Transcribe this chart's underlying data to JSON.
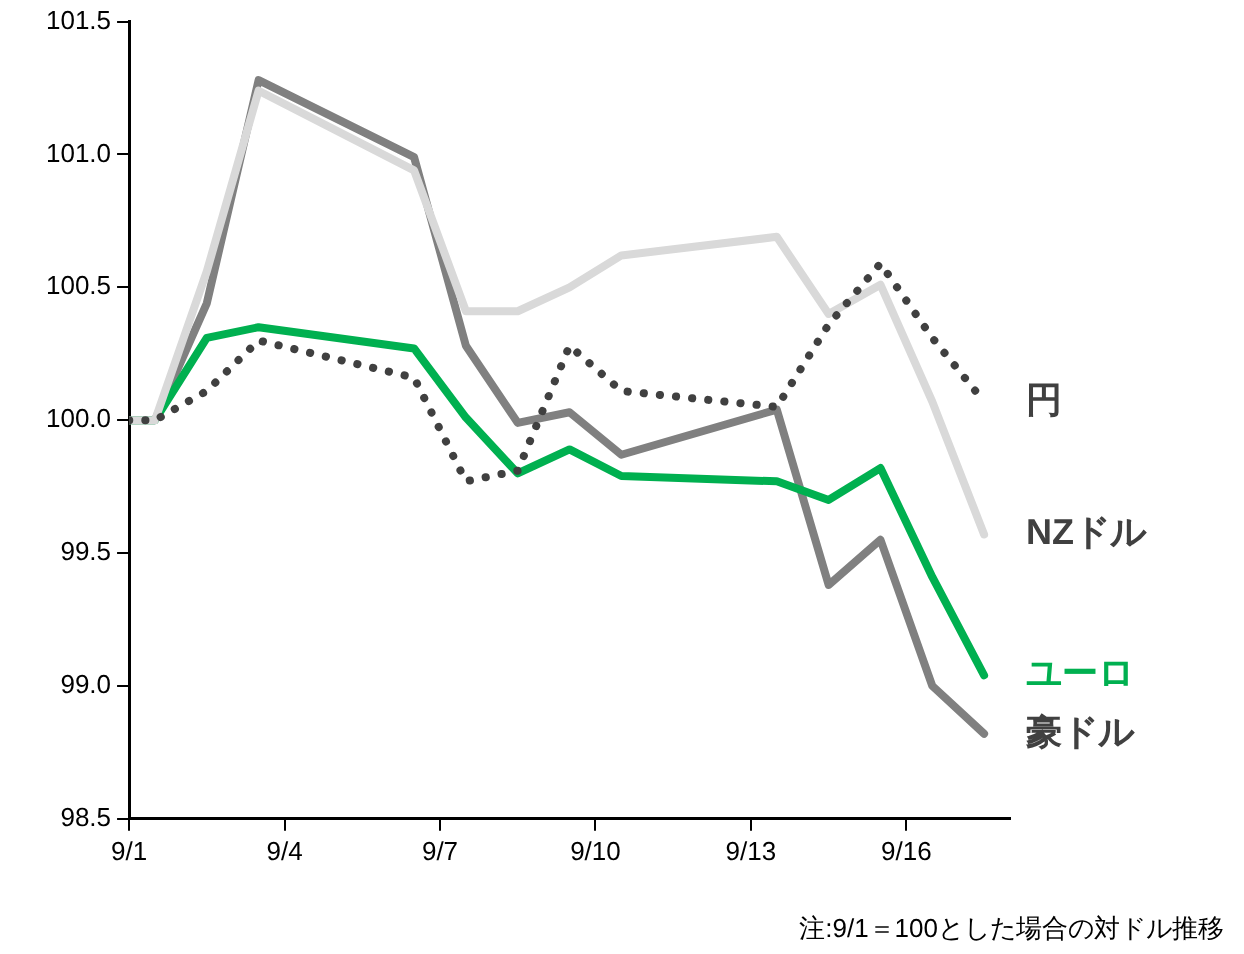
{
  "chart_data": {
    "type": "line",
    "x": [
      "--09-01T00:00",
      "--09-01T12:00",
      "--09-02T12:00",
      "--09-03T12:00",
      "--09-06T12:00",
      "--09-07T12:00",
      "--09-08T12:00",
      "--09-09T12:00",
      "--09-10T12:00",
      "--09-13T12:00",
      "--09-14T12:00",
      "--09-15T12:00",
      "--09-16T12:00",
      "--09-17T12:00"
    ],
    "xlim": [
      "--09-01",
      "--09-18"
    ],
    "xticks": [
      {
        "value": "--09-01",
        "label": "9/1"
      },
      {
        "value": "--09-04",
        "label": "9/4"
      },
      {
        "value": "--09-07",
        "label": "9/7"
      },
      {
        "value": "--09-10",
        "label": "9/10"
      },
      {
        "value": "--09-13",
        "label": "9/13"
      },
      {
        "value": "--09-16",
        "label": "9/16"
      }
    ],
    "ylim": [
      98.5,
      101.5
    ],
    "yticks": [
      {
        "value": 98.5,
        "label": "98.5"
      },
      {
        "value": 99,
        "label": "99.0"
      },
      {
        "value": 99.5,
        "label": "99.5"
      },
      {
        "value": 100,
        "label": "100.0"
      },
      {
        "value": 100.5,
        "label": "100.5"
      },
      {
        "value": 101,
        "label": "101.0"
      },
      {
        "value": 101.5,
        "label": "101.5"
      }
    ],
    "grid": false,
    "legend": false,
    "marker": "none",
    "series": [
      {
        "name": "円",
        "color": "#404040",
        "line_style": "dotted",
        "values": [
          100,
          100,
          100.11,
          100.3,
          100.16,
          99.77,
          99.81,
          100.28,
          100.11,
          100.05,
          100.36,
          100.59,
          100.31,
          100.07
        ]
      },
      {
        "name": "NZドル",
        "color": "#d9d9d9",
        "values": [
          100,
          100,
          100.56,
          101.24,
          100.94,
          100.41,
          100.41,
          100.5,
          100.62,
          100.69,
          100.4,
          100.51,
          100.07,
          99.57
        ]
      },
      {
        "name": "ユーロ",
        "color": "#00b050",
        "values": [
          100,
          100,
          100.31,
          100.35,
          100.27,
          100.01,
          99.8,
          99.89,
          99.79,
          99.77,
          99.7,
          99.82,
          99.41,
          99.04
        ]
      },
      {
        "name": "豪ドル",
        "color": "#808080",
        "values": [
          100,
          100,
          100.44,
          101.28,
          100.99,
          100.28,
          99.99,
          100.03,
          99.87,
          100.04,
          99.38,
          99.55,
          99,
          98.82
        ]
      }
    ],
    "annotations": [
      "注:9/1＝100とした場合の対ドル推移"
    ]
  }
}
